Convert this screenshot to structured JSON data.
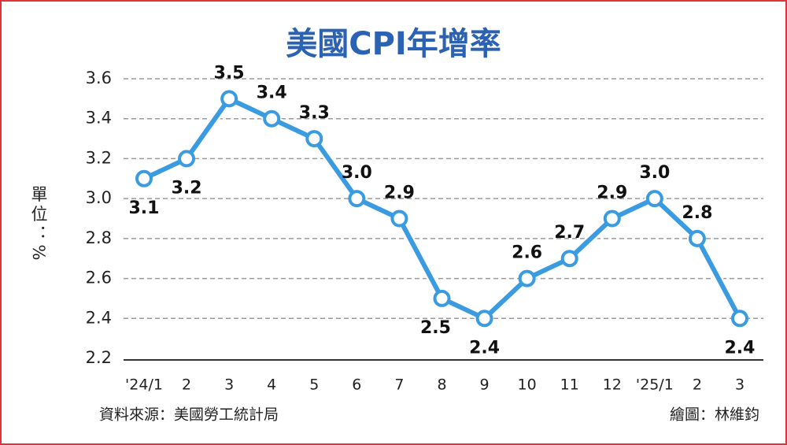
{
  "chart_data": {
    "type": "line",
    "title": "美國CPI年增率",
    "y_label": "單位：%",
    "source": "資料來源：美國勞工統計局",
    "credit": "繪圖：林維鈞",
    "categories": [
      "'24/1",
      "2",
      "3",
      "4",
      "5",
      "6",
      "7",
      "8",
      "9",
      "10",
      "11",
      "12",
      "'25/1",
      "2",
      "3"
    ],
    "series": [
      {
        "name": "CPI",
        "color": "#3b9be0",
        "values": [
          3.1,
          3.2,
          3.5,
          3.4,
          3.3,
          3.0,
          2.9,
          2.5,
          2.4,
          2.6,
          2.7,
          2.9,
          3.0,
          2.8,
          2.4
        ],
        "value_labels": [
          "3.1",
          "3.2",
          "3.5",
          "3.4",
          "3.3",
          "3.0",
          "2.9",
          "2.5",
          "2.4",
          "2.6",
          "2.7",
          "2.9",
          "3.0",
          "2.8",
          "2.4"
        ]
      }
    ],
    "ylim": [
      2.2,
      3.6
    ],
    "yticks": [
      2.2,
      2.4,
      2.6,
      2.8,
      {
        "value": 3,
        "label": "3.0"
      },
      3.2,
      3.4,
      3.6
    ],
    "grid": true
  }
}
